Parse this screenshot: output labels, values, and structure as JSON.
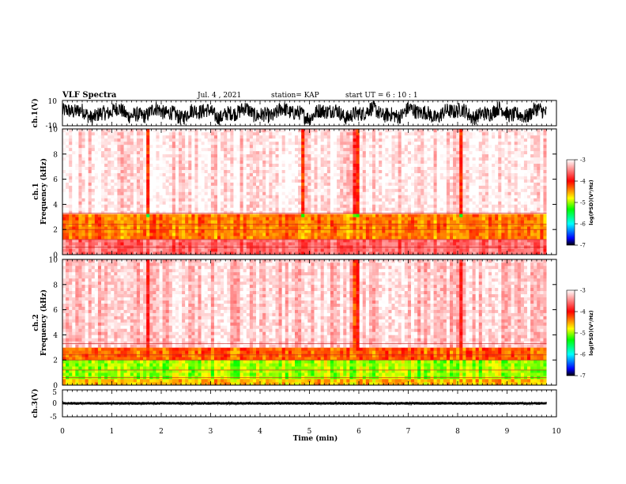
{
  "header": {
    "title": "VLF Spectra",
    "date": "Jul. 4 , 2021",
    "station": "station= KAP",
    "start": "start UT =  6 : 10 : 1"
  },
  "x_axis": {
    "label": "Time (min)",
    "ticks": [
      "0",
      "1",
      "2",
      "3",
      "4",
      "5",
      "6",
      "7",
      "8",
      "9",
      "10"
    ]
  },
  "panels": {
    "ch1_wave": {
      "ylabel": "ch.1(V)",
      "ticks": [
        "10",
        "-10"
      ]
    },
    "ch1_spec": {
      "ylabel": "ch.1 Frequency (kHz)",
      "ticks": [
        "10",
        "8",
        "6",
        "4",
        "2",
        "0"
      ]
    },
    "ch2_spec": {
      "ylabel": "ch.2 Frequency (kHz)",
      "ticks": [
        "10",
        "8",
        "6",
        "4",
        "2",
        "0"
      ]
    },
    "ch3_wave": {
      "ylabel": "ch.3(V)",
      "ticks": [
        "5",
        "0",
        "-5"
      ]
    }
  },
  "colorbar": {
    "label": "log(PSD)(V²/Hz)",
    "ticks": [
      "-3",
      "-4",
      "-5",
      "-6",
      "-7"
    ],
    "range": [
      -7,
      -3
    ],
    "colors": [
      "#000000",
      "#0000ff",
      "#00ffff",
      "#00ff00",
      "#ffff00",
      "#ff0000",
      "#ffffff"
    ]
  },
  "chart_data": [
    {
      "type": "line",
      "name": "ch.1(V)",
      "xlim": [
        0,
        10
      ],
      "ylim": [
        -10,
        10
      ],
      "data_end_min": 9.8,
      "description_values": {
        "amplitude_range_V": [
          -8,
          8
        ]
      }
    },
    {
      "type": "heatmap",
      "name": "ch.1",
      "xlim": [
        0,
        10
      ],
      "ylim": [
        0,
        10
      ],
      "data_end_min": 9.8,
      "z_range": [
        -7,
        -3
      ],
      "bands_khz": [
        {
          "from": 0,
          "to": 1.2,
          "level": -3.6
        },
        {
          "from": 1.2,
          "to": 3.3,
          "level": -4.4
        },
        {
          "from": 3.3,
          "to": 10,
          "level": -3.1
        }
      ],
      "bright_columns_min": [
        1.75,
        4.85,
        5.9,
        6.0,
        8.05
      ]
    },
    {
      "type": "heatmap",
      "name": "ch.2",
      "xlim": [
        0,
        10
      ],
      "ylim": [
        0,
        10
      ],
      "data_end_min": 9.8,
      "z_range": [
        -7,
        -3
      ],
      "bands_khz": [
        {
          "from": 0,
          "to": 0.6,
          "level": -4.6
        },
        {
          "from": 0.6,
          "to": 2.0,
          "level": -5.0
        },
        {
          "from": 2.0,
          "to": 3.0,
          "level": -4.3
        },
        {
          "from": 3.0,
          "to": 10,
          "level": -3.2
        }
      ],
      "bright_columns_min": [
        1.75,
        5.9,
        6.0,
        8.05
      ]
    },
    {
      "type": "line",
      "name": "ch.3(V)",
      "xlim": [
        0,
        10
      ],
      "ylim": [
        -5,
        5
      ],
      "data_end_min": 9.8,
      "description_values": {
        "amplitude_range_V": [
          -0.5,
          0.5
        ]
      }
    }
  ]
}
